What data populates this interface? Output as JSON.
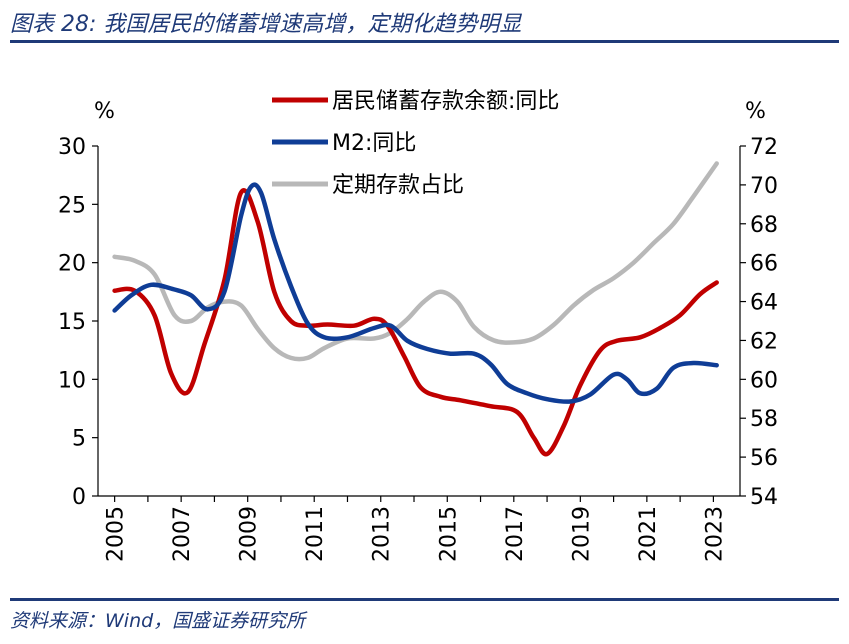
{
  "header": {
    "title": "图表 28:  我国居民的储蓄增速高增，定期化趋势明显"
  },
  "footer": {
    "source": "资料来源：Wind，国盛证券研究所"
  },
  "chart_data": {
    "type": "line",
    "left_axis": {
      "unit": "%",
      "ylim": [
        0,
        30
      ],
      "ticks": [
        "0",
        "5",
        "10",
        "15",
        "20",
        "25",
        "30"
      ]
    },
    "right_axis": {
      "unit": "%",
      "ylim": [
        54,
        72
      ],
      "ticks": [
        "54",
        "56",
        "58",
        "60",
        "62",
        "64",
        "66",
        "68",
        "70",
        "72"
      ]
    },
    "x_tick_labels": [
      "2005",
      "2007",
      "2009",
      "2011",
      "2013",
      "2015",
      "2017",
      "2019",
      "2021",
      "2023"
    ],
    "xlim": [
      2004.7,
      2024.0
    ],
    "series": [
      {
        "name": "居民储蓄存款余额:同比",
        "axis": "left",
        "color": "#c00000",
        "points": [
          [
            2005.2,
            17.6
          ],
          [
            2005.8,
            17.6
          ],
          [
            2006.4,
            15.5
          ],
          [
            2006.9,
            10.5
          ],
          [
            2007.4,
            8.9
          ],
          [
            2007.9,
            13.0
          ],
          [
            2008.5,
            18.5
          ],
          [
            2009.0,
            26.0
          ],
          [
            2009.5,
            23.5
          ],
          [
            2010.0,
            17.5
          ],
          [
            2010.5,
            15.0
          ],
          [
            2011.0,
            14.6
          ],
          [
            2011.6,
            14.7
          ],
          [
            2012.4,
            14.6
          ],
          [
            2013.0,
            15.2
          ],
          [
            2013.4,
            14.6
          ],
          [
            2013.9,
            12.0
          ],
          [
            2014.4,
            9.3
          ],
          [
            2015.0,
            8.5
          ],
          [
            2015.6,
            8.2
          ],
          [
            2016.5,
            7.7
          ],
          [
            2017.3,
            7.2
          ],
          [
            2017.8,
            5.0
          ],
          [
            2018.2,
            3.6
          ],
          [
            2018.7,
            6.0
          ],
          [
            2019.2,
            9.5
          ],
          [
            2019.8,
            12.5
          ],
          [
            2020.3,
            13.3
          ],
          [
            2021.0,
            13.6
          ],
          [
            2021.6,
            14.4
          ],
          [
            2022.2,
            15.5
          ],
          [
            2022.8,
            17.3
          ],
          [
            2023.3,
            18.3
          ]
        ]
      },
      {
        "name": "M2:同比",
        "axis": "left",
        "color": "#0f3d96",
        "points": [
          [
            2005.2,
            15.9
          ],
          [
            2005.7,
            17.2
          ],
          [
            2006.3,
            18.1
          ],
          [
            2007.0,
            17.7
          ],
          [
            2007.5,
            17.2
          ],
          [
            2008.0,
            16.0
          ],
          [
            2008.5,
            17.5
          ],
          [
            2009.0,
            24.0
          ],
          [
            2009.3,
            26.5
          ],
          [
            2009.6,
            26.0
          ],
          [
            2010.0,
            22.0
          ],
          [
            2010.5,
            18.0
          ],
          [
            2011.0,
            14.8
          ],
          [
            2011.5,
            13.6
          ],
          [
            2012.2,
            13.6
          ],
          [
            2013.0,
            14.4
          ],
          [
            2013.5,
            14.6
          ],
          [
            2014.0,
            13.3
          ],
          [
            2014.6,
            12.6
          ],
          [
            2015.3,
            12.2
          ],
          [
            2016.0,
            12.2
          ],
          [
            2016.5,
            11.3
          ],
          [
            2017.0,
            9.6
          ],
          [
            2017.6,
            8.8
          ],
          [
            2018.2,
            8.3
          ],
          [
            2018.9,
            8.1
          ],
          [
            2019.5,
            8.7
          ],
          [
            2020.2,
            10.4
          ],
          [
            2020.6,
            10.0
          ],
          [
            2021.0,
            8.8
          ],
          [
            2021.5,
            9.2
          ],
          [
            2022.0,
            11.0
          ],
          [
            2022.6,
            11.4
          ],
          [
            2023.3,
            11.2
          ]
        ]
      },
      {
        "name": "定期存款占比",
        "axis": "right",
        "color": "#b8b8b8",
        "points": [
          [
            2005.2,
            66.3
          ],
          [
            2005.8,
            66.1
          ],
          [
            2006.4,
            65.4
          ],
          [
            2007.0,
            63.3
          ],
          [
            2007.5,
            63.0
          ],
          [
            2008.0,
            63.7
          ],
          [
            2008.5,
            64.0
          ],
          [
            2009.0,
            63.8
          ],
          [
            2009.5,
            62.6
          ],
          [
            2010.0,
            61.6
          ],
          [
            2010.5,
            61.1
          ],
          [
            2011.0,
            61.1
          ],
          [
            2011.5,
            61.6
          ],
          [
            2012.2,
            62.1
          ],
          [
            2013.0,
            62.1
          ],
          [
            2013.5,
            62.4
          ],
          [
            2014.0,
            63.1
          ],
          [
            2014.5,
            64.0
          ],
          [
            2015.0,
            64.5
          ],
          [
            2015.5,
            64.0
          ],
          [
            2016.0,
            62.7
          ],
          [
            2016.6,
            62.0
          ],
          [
            2017.2,
            61.9
          ],
          [
            2017.8,
            62.1
          ],
          [
            2018.4,
            62.8
          ],
          [
            2019.0,
            63.8
          ],
          [
            2019.6,
            64.6
          ],
          [
            2020.2,
            65.2
          ],
          [
            2020.8,
            66.0
          ],
          [
            2021.4,
            67.0
          ],
          [
            2022.0,
            68.0
          ],
          [
            2022.6,
            69.4
          ],
          [
            2023.3,
            71.1
          ]
        ]
      }
    ]
  }
}
